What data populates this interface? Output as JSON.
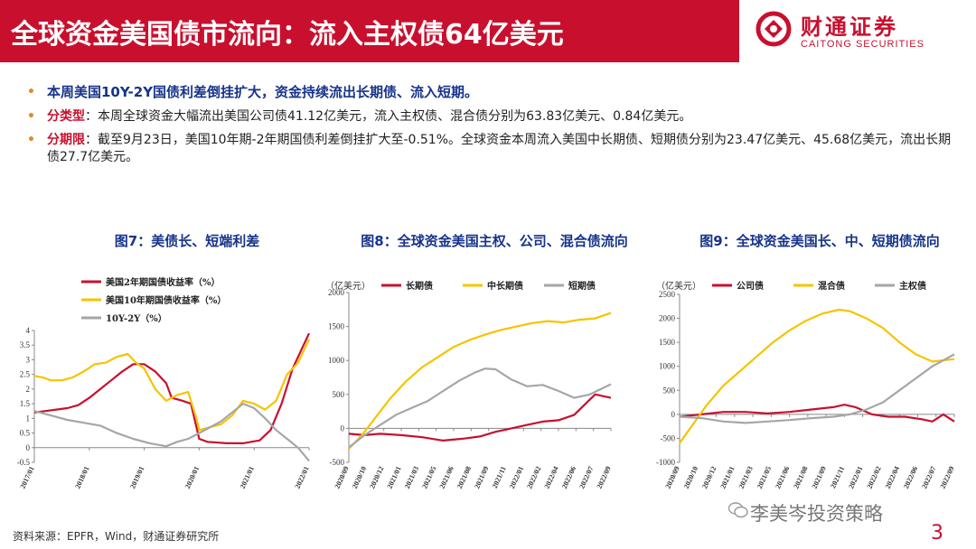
{
  "header": {
    "title": "全球资金美国债市流向：流入主权债64亿美元",
    "logo_cn": "财通证券",
    "logo_en": "CAITONG SECURITIES"
  },
  "bullets": [
    {
      "label": "",
      "text": "本周美国10Y-2Y国债利差倒挂扩大，资金持续流出长期债、流入短期。"
    },
    {
      "label": "分类型",
      "text": "：本周全球资金大幅流出美国公司债41.12亿美元，流入主权债、混合债分别为63.83亿美元、0.84亿美元。"
    },
    {
      "label": "分期限",
      "text": "：截至9月23日，美国10年期-2年期国债利差倒挂扩大至-0.51%。全球资金本周流入美国中长期债、短期债分别为23.47亿美元、45.68亿美元，流出长期债27.7亿美元。"
    }
  ],
  "colors": {
    "red": "#c8102e",
    "yellow": "#f5c400",
    "gray": "#a6a6a6",
    "navy": "#16338a"
  },
  "chart_data": [
    {
      "type": "line",
      "title": "图7：美债长、短端利差",
      "x_ticks": [
        "2017/01",
        "2018/01",
        "2019/01",
        "2020/01",
        "2021/01",
        "2022/01"
      ],
      "ylim": [
        -0.5,
        4
      ],
      "y_ticks": [
        "-0.5",
        "0",
        "0.5",
        "1",
        "1.5",
        "2",
        "2.5",
        "3",
        "3.5",
        "4"
      ],
      "legend": [
        "美国2年期国债收益率（%）",
        "美国10年期国债收益率（%）",
        "10Y-2Y（%）"
      ],
      "series": [
        {
          "name": "美国2年期国债收益率（%）",
          "color": "red",
          "points": [
            [
              0,
              1.2
            ],
            [
              0.04,
              1.25
            ],
            [
              0.08,
              1.3
            ],
            [
              0.12,
              1.35
            ],
            [
              0.16,
              1.45
            ],
            [
              0.2,
              1.7
            ],
            [
              0.24,
              2.0
            ],
            [
              0.28,
              2.3
            ],
            [
              0.32,
              2.6
            ],
            [
              0.36,
              2.85
            ],
            [
              0.4,
              2.85
            ],
            [
              0.44,
              2.6
            ],
            [
              0.48,
              2.2
            ],
            [
              0.5,
              1.7
            ],
            [
              0.54,
              1.6
            ],
            [
              0.57,
              1.5
            ],
            [
              0.59,
              0.7
            ],
            [
              0.6,
              0.3
            ],
            [
              0.63,
              0.2
            ],
            [
              0.7,
              0.15
            ],
            [
              0.76,
              0.15
            ],
            [
              0.82,
              0.25
            ],
            [
              0.86,
              0.6
            ],
            [
              0.9,
              1.5
            ],
            [
              0.94,
              2.7
            ],
            [
              0.97,
              3.3
            ],
            [
              1.0,
              3.9
            ]
          ]
        },
        {
          "name": "美国10年期国债收益率（%）",
          "color": "yellow",
          "points": [
            [
              0,
              2.45
            ],
            [
              0.03,
              2.4
            ],
            [
              0.06,
              2.3
            ],
            [
              0.1,
              2.3
            ],
            [
              0.14,
              2.4
            ],
            [
              0.18,
              2.6
            ],
            [
              0.22,
              2.85
            ],
            [
              0.26,
              2.9
            ],
            [
              0.3,
              3.1
            ],
            [
              0.34,
              3.2
            ],
            [
              0.37,
              2.9
            ],
            [
              0.4,
              2.7
            ],
            [
              0.44,
              2.0
            ],
            [
              0.48,
              1.6
            ],
            [
              0.52,
              1.8
            ],
            [
              0.56,
              1.9
            ],
            [
              0.59,
              1.0
            ],
            [
              0.6,
              0.6
            ],
            [
              0.64,
              0.7
            ],
            [
              0.68,
              0.8
            ],
            [
              0.72,
              1.1
            ],
            [
              0.76,
              1.6
            ],
            [
              0.8,
              1.5
            ],
            [
              0.84,
              1.3
            ],
            [
              0.88,
              1.6
            ],
            [
              0.92,
              2.5
            ],
            [
              0.96,
              2.9
            ],
            [
              1.0,
              3.7
            ]
          ]
        },
        {
          "name": "10Y-2Y（%）",
          "color": "gray",
          "points": [
            [
              0,
              1.25
            ],
            [
              0.06,
              1.1
            ],
            [
              0.12,
              0.95
            ],
            [
              0.18,
              0.85
            ],
            [
              0.24,
              0.75
            ],
            [
              0.3,
              0.5
            ],
            [
              0.36,
              0.3
            ],
            [
              0.42,
              0.15
            ],
            [
              0.48,
              0.05
            ],
            [
              0.52,
              0.2
            ],
            [
              0.56,
              0.3
            ],
            [
              0.6,
              0.5
            ],
            [
              0.64,
              0.7
            ],
            [
              0.68,
              0.9
            ],
            [
              0.72,
              1.2
            ],
            [
              0.76,
              1.5
            ],
            [
              0.8,
              1.35
            ],
            [
              0.84,
              1.0
            ],
            [
              0.88,
              0.6
            ],
            [
              0.92,
              0.3
            ],
            [
              0.96,
              0.0
            ],
            [
              1.0,
              -0.45
            ]
          ]
        }
      ]
    },
    {
      "type": "line",
      "title": "图8：全球资金美国主权、公司、混合债流向",
      "unit": "（亿美元）",
      "x_ticks": [
        "2020/09",
        "2020/10",
        "2020/12",
        "2021/01",
        "2021/03",
        "2021/05",
        "2021/06",
        "2021/08",
        "2021/09",
        "2021/11",
        "2022/01",
        "2022/02",
        "2022/04",
        "2022/06",
        "2022/07",
        "2022/09"
      ],
      "ylim": [
        -500,
        2000
      ],
      "y_ticks": [
        "-500",
        "0",
        "500",
        "1000",
        "1500",
        "2000"
      ],
      "legend": [
        "长期债",
        "中长期债",
        "短期债"
      ],
      "series": [
        {
          "name": "长期债",
          "color": "red",
          "points": [
            [
              0,
              -80
            ],
            [
              0.06,
              -100
            ],
            [
              0.12,
              -80
            ],
            [
              0.2,
              -100
            ],
            [
              0.28,
              -130
            ],
            [
              0.36,
              -180
            ],
            [
              0.44,
              -150
            ],
            [
              0.5,
              -120
            ],
            [
              0.56,
              -50
            ],
            [
              0.62,
              0
            ],
            [
              0.68,
              50
            ],
            [
              0.74,
              100
            ],
            [
              0.8,
              120
            ],
            [
              0.86,
              200
            ],
            [
              0.9,
              350
            ],
            [
              0.94,
              500
            ],
            [
              1.0,
              450
            ]
          ]
        },
        {
          "name": "中长期债",
          "color": "yellow",
          "points": [
            [
              0,
              -300
            ],
            [
              0.05,
              -100
            ],
            [
              0.1,
              150
            ],
            [
              0.16,
              450
            ],
            [
              0.22,
              700
            ],
            [
              0.28,
              900
            ],
            [
              0.34,
              1050
            ],
            [
              0.4,
              1200
            ],
            [
              0.46,
              1300
            ],
            [
              0.52,
              1380
            ],
            [
              0.58,
              1450
            ],
            [
              0.64,
              1500
            ],
            [
              0.7,
              1550
            ],
            [
              0.76,
              1580
            ],
            [
              0.82,
              1560
            ],
            [
              0.88,
              1600
            ],
            [
              0.94,
              1620
            ],
            [
              1.0,
              1700
            ]
          ]
        },
        {
          "name": "短期债",
          "color": "gray",
          "points": [
            [
              0,
              -280
            ],
            [
              0.06,
              -100
            ],
            [
              0.12,
              50
            ],
            [
              0.18,
              200
            ],
            [
              0.24,
              300
            ],
            [
              0.3,
              400
            ],
            [
              0.36,
              550
            ],
            [
              0.42,
              700
            ],
            [
              0.48,
              820
            ],
            [
              0.52,
              880
            ],
            [
              0.56,
              870
            ],
            [
              0.62,
              720
            ],
            [
              0.68,
              620
            ],
            [
              0.74,
              640
            ],
            [
              0.8,
              550
            ],
            [
              0.86,
              450
            ],
            [
              0.92,
              500
            ],
            [
              1.0,
              650
            ]
          ]
        }
      ]
    },
    {
      "type": "line",
      "title": "图9：全球资金美国长、中、短期债流向",
      "unit": "（亿美元）",
      "x_ticks": [
        "2020/09",
        "2020/10",
        "2020/12",
        "2021/01",
        "2021/03",
        "2021/05",
        "2021/06",
        "2021/08",
        "2021/09",
        "2021/11",
        "2022/01",
        "2022/02",
        "2022/04",
        "2022/06",
        "2022/07",
        "2022/09"
      ],
      "ylim": [
        -1000,
        2500
      ],
      "y_ticks": [
        "-1000",
        "-500",
        "0",
        "500",
        "1000",
        "1500",
        "2000",
        "2500"
      ],
      "legend": [
        "公司债",
        "混合债",
        "主权债"
      ],
      "series": [
        {
          "name": "公司债",
          "color": "red",
          "points": [
            [
              0,
              -50
            ],
            [
              0.08,
              0
            ],
            [
              0.16,
              50
            ],
            [
              0.24,
              50
            ],
            [
              0.32,
              20
            ],
            [
              0.4,
              50
            ],
            [
              0.48,
              100
            ],
            [
              0.56,
              150
            ],
            [
              0.6,
              200
            ],
            [
              0.64,
              150
            ],
            [
              0.7,
              0
            ],
            [
              0.76,
              -50
            ],
            [
              0.82,
              -50
            ],
            [
              0.88,
              -100
            ],
            [
              0.92,
              -150
            ],
            [
              0.96,
              0
            ],
            [
              1.0,
              -150
            ]
          ]
        },
        {
          "name": "混合债",
          "color": "yellow",
          "points": [
            [
              0,
              -600
            ],
            [
              0.05,
              -200
            ],
            [
              0.1,
              200
            ],
            [
              0.16,
              600
            ],
            [
              0.22,
              900
            ],
            [
              0.28,
              1200
            ],
            [
              0.34,
              1500
            ],
            [
              0.4,
              1750
            ],
            [
              0.46,
              1950
            ],
            [
              0.52,
              2100
            ],
            [
              0.58,
              2180
            ],
            [
              0.62,
              2150
            ],
            [
              0.68,
              2000
            ],
            [
              0.74,
              1800
            ],
            [
              0.8,
              1500
            ],
            [
              0.86,
              1250
            ],
            [
              0.92,
              1100
            ],
            [
              1.0,
              1150
            ]
          ]
        },
        {
          "name": "主权债",
          "color": "gray",
          "points": [
            [
              0,
              -50
            ],
            [
              0.08,
              -80
            ],
            [
              0.16,
              -150
            ],
            [
              0.24,
              -180
            ],
            [
              0.32,
              -150
            ],
            [
              0.4,
              -120
            ],
            [
              0.48,
              -80
            ],
            [
              0.56,
              -50
            ],
            [
              0.62,
              0
            ],
            [
              0.68,
              100
            ],
            [
              0.74,
              250
            ],
            [
              0.8,
              500
            ],
            [
              0.86,
              750
            ],
            [
              0.92,
              1000
            ],
            [
              1.0,
              1250
            ]
          ]
        }
      ]
    }
  ],
  "footer": {
    "source": "资料来源：EPFR，Wind，财通证券研究所",
    "watermark": "李美岑投资策略",
    "page": "3"
  }
}
